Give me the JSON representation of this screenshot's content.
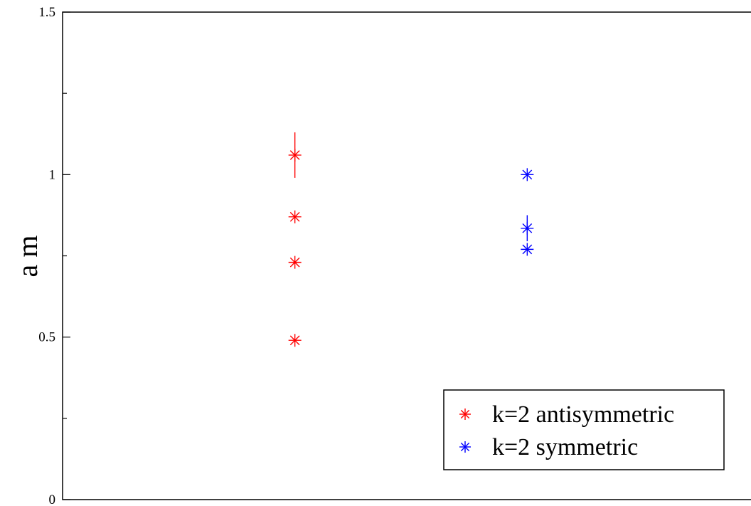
{
  "chart_data": {
    "type": "scatter",
    "title": "",
    "xlabel": "",
    "ylabel": "a m",
    "ylim": [
      0,
      1.5
    ],
    "xlim": [
      0,
      3
    ],
    "y_ticks": [
      {
        "value": 0,
        "label": "0"
      },
      {
        "value": 0.5,
        "label": "0.5"
      },
      {
        "value": 1,
        "label": "1"
      },
      {
        "value": 1.5,
        "label": "1.5"
      }
    ],
    "y_minor_ticks": [
      0.25,
      0.75,
      1.25
    ],
    "x_tick_labels_shown": false,
    "grid": false,
    "legend": {
      "position": "bottom-right"
    },
    "series": [
      {
        "name": "k=2 antisymmetric",
        "color": "#ff0000",
        "marker": "asterisk",
        "points": [
          {
            "x": 1,
            "y": 1.06,
            "yerr": 0.07
          },
          {
            "x": 1,
            "y": 0.87,
            "yerr": 0
          },
          {
            "x": 1,
            "y": 0.73,
            "yerr": 0
          },
          {
            "x": 1,
            "y": 0.49,
            "yerr": 0
          }
        ]
      },
      {
        "name": "k=2 symmetric",
        "color": "#0000ff",
        "marker": "asterisk",
        "points": [
          {
            "x": 2,
            "y": 1.0,
            "yerr": 0
          },
          {
            "x": 2,
            "y": 0.835,
            "yerr": 0.04
          },
          {
            "x": 2,
            "y": 0.77,
            "yerr": 0
          }
        ]
      }
    ]
  }
}
